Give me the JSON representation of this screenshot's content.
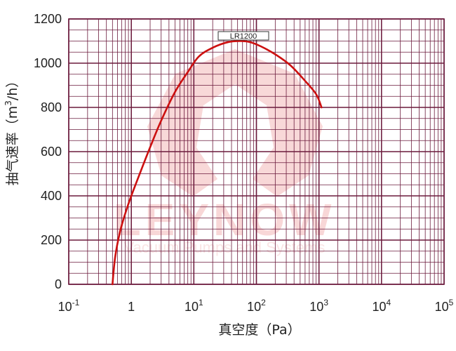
{
  "chart_data": {
    "type": "line",
    "xscale": "log",
    "xlim": [
      0.1,
      100000
    ],
    "ylim": [
      0,
      1200
    ],
    "xlabel": "真空度（Pa）",
    "ylabel": "抽气速率（m³/h）",
    "ylabel_prefix": "抽气速率（m",
    "ylabel_sup": "3",
    "ylabel_suffix": "/h）",
    "yticks": [
      "0",
      "200",
      "400",
      "600",
      "800",
      "1000",
      "1200"
    ],
    "xticks": [
      {
        "base": "10",
        "exp": "-1"
      },
      {
        "base": "1",
        "exp": ""
      },
      {
        "base": "10",
        "exp": "1"
      },
      {
        "base": "10",
        "exp": "2"
      },
      {
        "base": "10",
        "exp": "3"
      },
      {
        "base": "10",
        "exp": "4"
      },
      {
        "base": "10",
        "exp": "5"
      }
    ],
    "series": [
      {
        "name": "LR1200",
        "color": "#cc1010",
        "x": [
          0.5,
          0.55,
          0.65,
          0.8,
          1.0,
          1.5,
          2.0,
          3.0,
          5.0,
          8.0,
          12.0,
          20.0,
          35.0,
          55.0,
          80.0,
          120.0,
          200.0,
          350.0,
          600.0,
          900.0,
          1100.0
        ],
        "y": [
          0,
          120,
          230,
          320,
          400,
          530,
          620,
          740,
          870,
          960,
          1030,
          1070,
          1095,
          1100,
          1095,
          1075,
          1040,
          990,
          920,
          860,
          800
        ]
      }
    ],
    "grid": true,
    "grid_color": "#6b1a3c",
    "watermark": {
      "text": "LEYNOW",
      "subtext": "Vacuum Pumps and Systems",
      "color": "#f3b8b8"
    }
  }
}
